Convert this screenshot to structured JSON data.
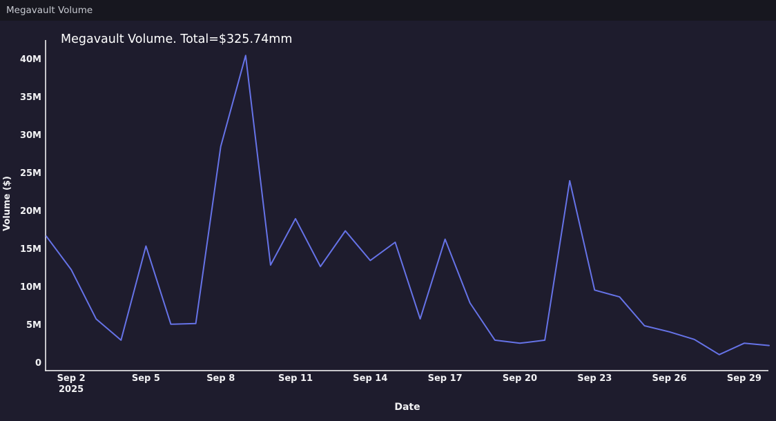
{
  "window": {
    "title": "Megavault Volume"
  },
  "chart": {
    "title": "Megavault Volume. Total=$325.74mm",
    "xlabel": "Date",
    "ylabel": "Volume ($)"
  },
  "colors": {
    "paper_bg": "#1e1c2d",
    "topbar_bg": "#17171f",
    "line": "#6673e8",
    "axis": "#ffffff",
    "tick_text": "#f2f2f4",
    "title_text": "#ffffff",
    "window_title_text": "#c6c9d0"
  },
  "chart_data": {
    "type": "line",
    "title": "Megavault Volume. Total=$325.74mm",
    "total_usd_mm": 325.74,
    "xlabel": "Date",
    "ylabel": "Volume ($)",
    "unit": "USD millions",
    "year": "2025",
    "grid": false,
    "legend": false,
    "x": [
      "Sep 1",
      "Sep 2",
      "Sep 3",
      "Sep 4",
      "Sep 5",
      "Sep 6",
      "Sep 7",
      "Sep 8",
      "Sep 9",
      "Sep 10",
      "Sep 11",
      "Sep 12",
      "Sep 13",
      "Sep 14",
      "Sep 15",
      "Sep 16",
      "Sep 17",
      "Sep 18",
      "Sep 19",
      "Sep 20",
      "Sep 21",
      "Sep 22",
      "Sep 23",
      "Sep 24",
      "Sep 25",
      "Sep 26",
      "Sep 27",
      "Sep 28",
      "Sep 29",
      "Sep 30"
    ],
    "values_millions": [
      16.8,
      12.4,
      5.9,
      3.1,
      15.5,
      5.2,
      5.3,
      28.6,
      40.6,
      13.0,
      19.1,
      12.8,
      17.5,
      13.6,
      16.0,
      5.9,
      16.4,
      8.0,
      3.1,
      2.7,
      3.1,
      24.1,
      9.7,
      8.8,
      5.0,
      4.2,
      3.2,
      1.2,
      2.7,
      2.4
    ],
    "ylim": [
      -0.9,
      42.6
    ],
    "yticks": [
      0,
      5,
      10,
      15,
      20,
      25,
      30,
      35,
      40
    ],
    "ytick_labels": [
      "0",
      "5M",
      "10M",
      "15M",
      "20M",
      "25M",
      "30M",
      "35M",
      "40M"
    ],
    "xticks": [
      {
        "index": 1,
        "label": "Sep 2",
        "sublabel": "2025"
      },
      {
        "index": 4,
        "label": "Sep 5"
      },
      {
        "index": 7,
        "label": "Sep 8"
      },
      {
        "index": 10,
        "label": "Sep 11"
      },
      {
        "index": 13,
        "label": "Sep 14"
      },
      {
        "index": 16,
        "label": "Sep 17"
      },
      {
        "index": 19,
        "label": "Sep 20"
      },
      {
        "index": 22,
        "label": "Sep 23"
      },
      {
        "index": 25,
        "label": "Sep 26"
      },
      {
        "index": 28,
        "label": "Sep 29"
      }
    ]
  }
}
